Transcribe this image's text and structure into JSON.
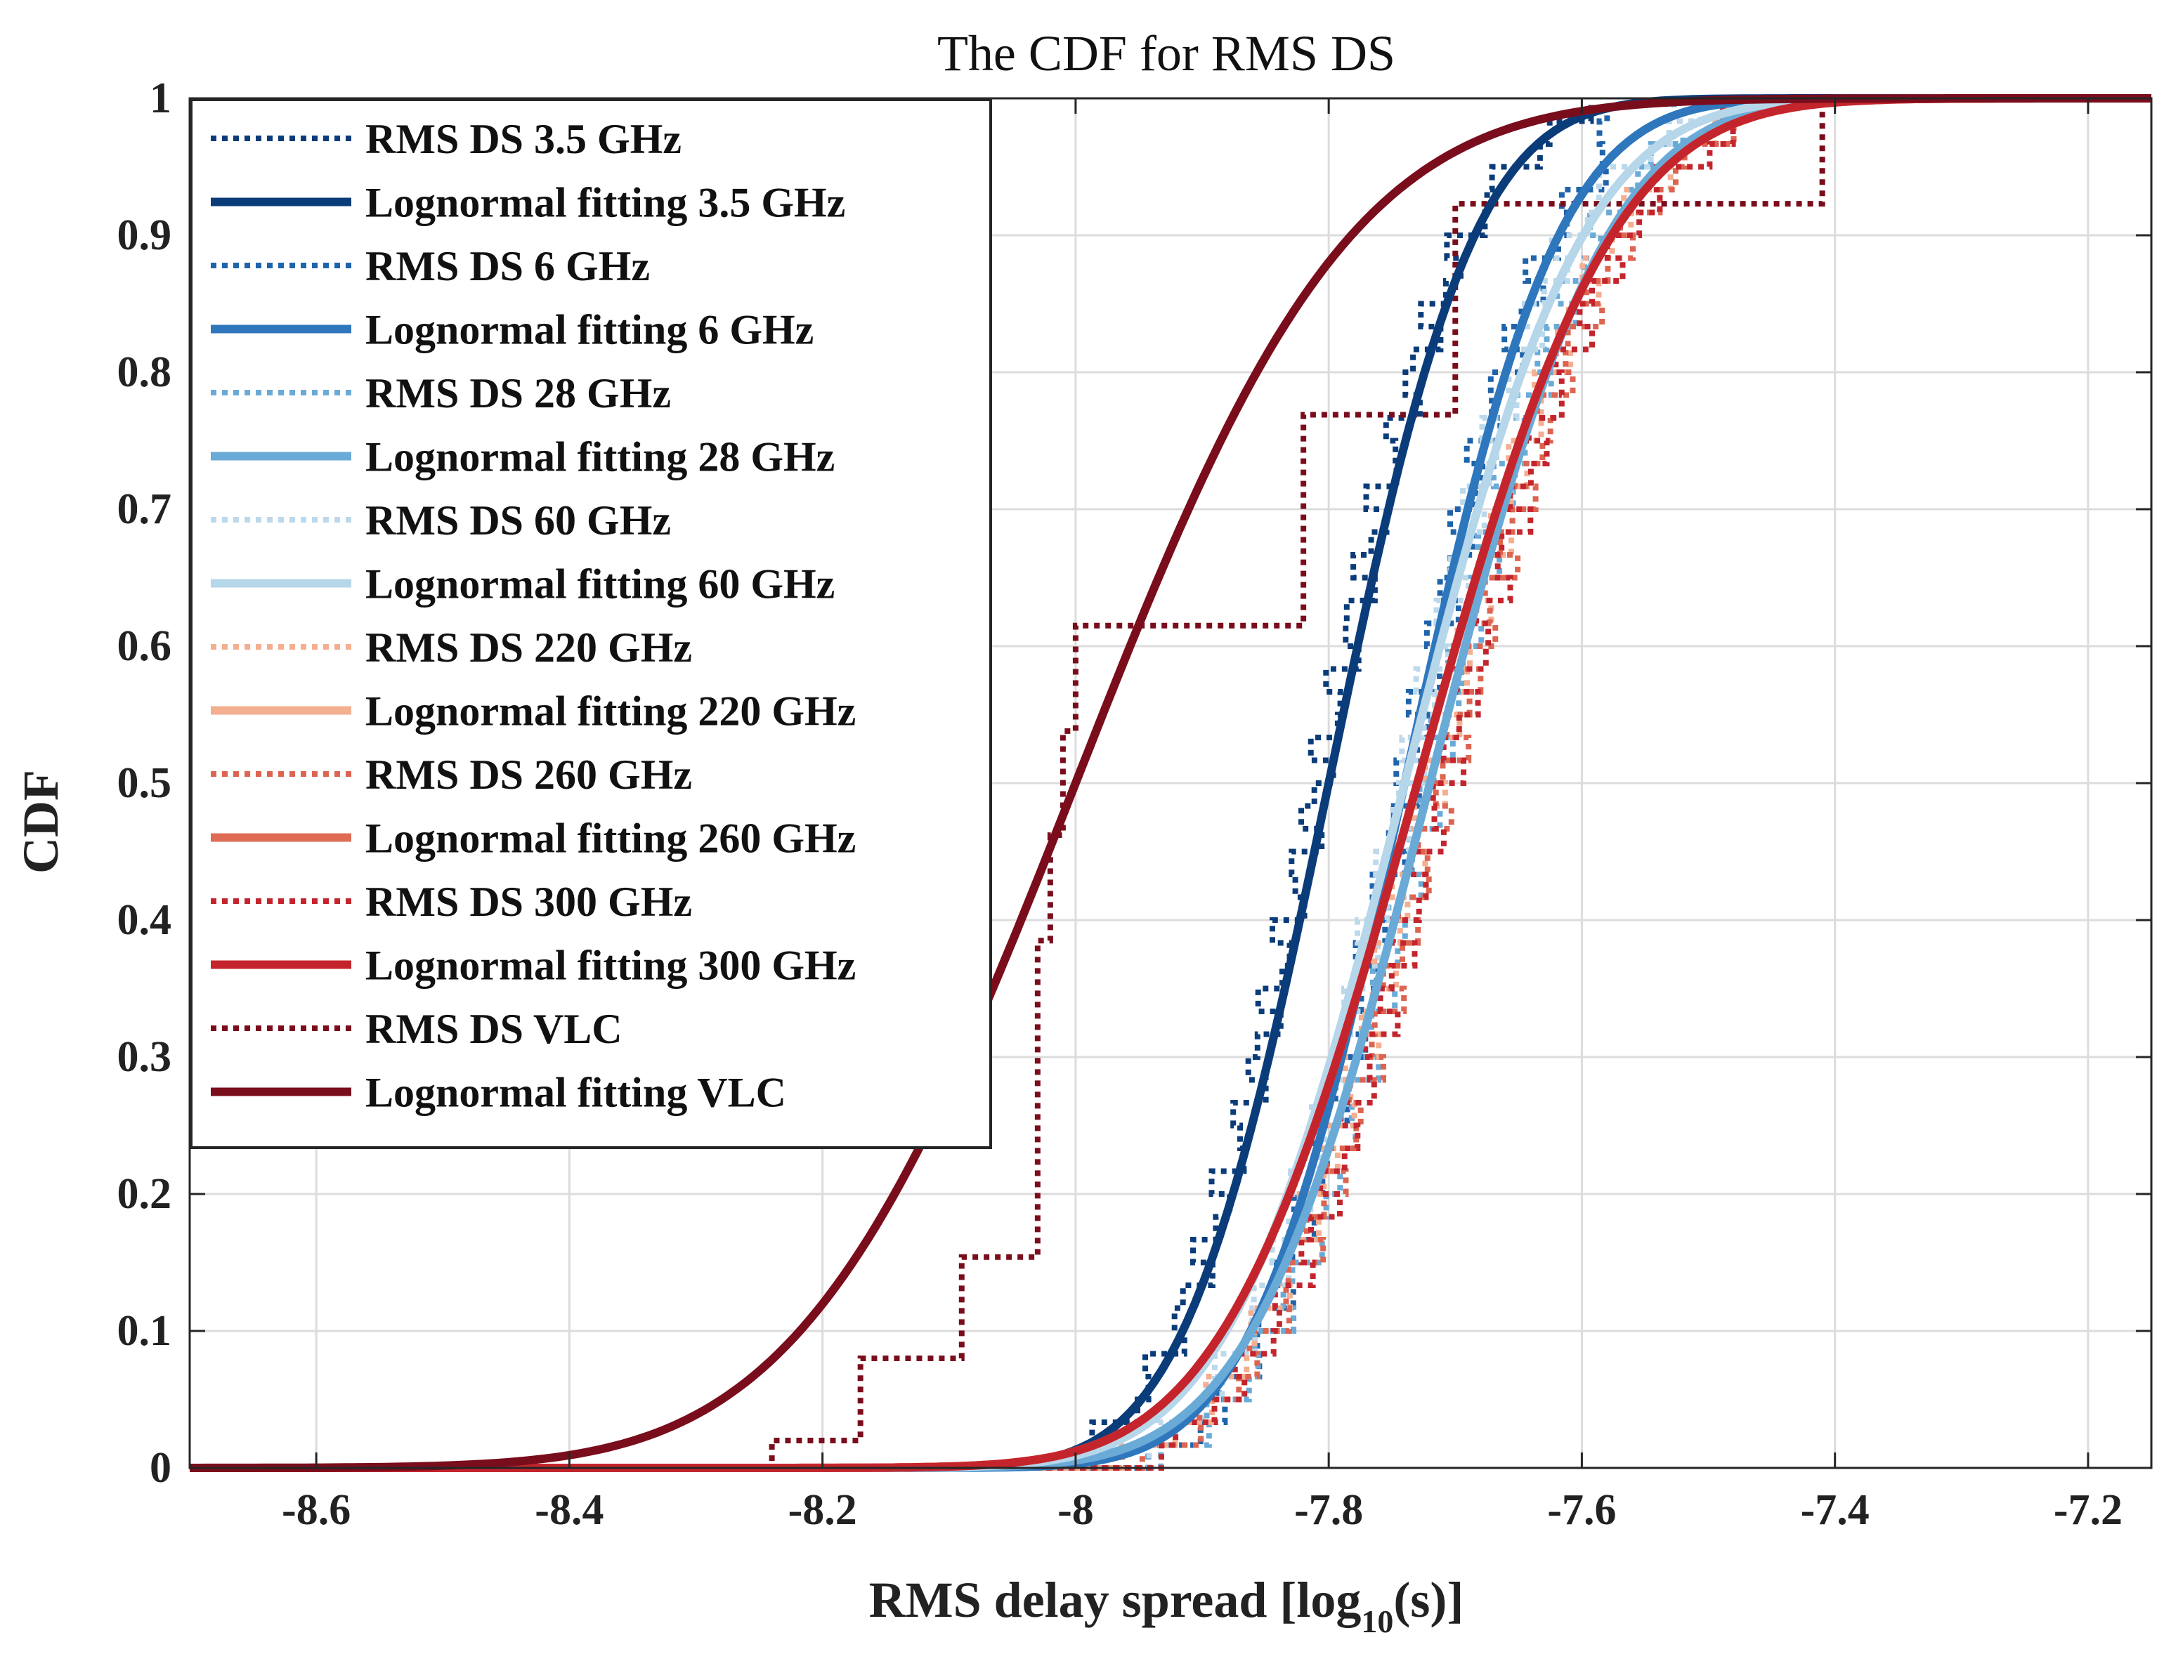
{
  "chart_data": {
    "type": "line",
    "title": "The CDF for RMS DS",
    "xlabel": "RMS delay spread [log10(s)]",
    "xlabel_main": "RMS delay spread [log",
    "xlabel_sub": "10",
    "xlabel_end": "(s)]",
    "ylabel": "CDF",
    "xlim": [
      -8.7,
      -7.15
    ],
    "ylim": [
      0,
      1
    ],
    "grid": true,
    "legend_position": "top-left",
    "x_ticks": [
      -8.6,
      -8.4,
      -8.2,
      -8.0,
      -7.8,
      -7.6,
      -7.4,
      -7.2
    ],
    "x_tick_labels": [
      "-8.6",
      "-8.4",
      "-8.2",
      "-8",
      "-7.8",
      "-7.6",
      "-7.4",
      "-7.2"
    ],
    "y_ticks": [
      0,
      0.1,
      0.2,
      0.3,
      0.4,
      0.5,
      0.6,
      0.7,
      0.8,
      0.9,
      1
    ],
    "y_tick_labels": [
      "0",
      "0.1",
      "0.2",
      "0.3",
      "0.4",
      "0.5",
      "0.6",
      "0.7",
      "0.8",
      "0.9",
      "1"
    ],
    "series": [
      {
        "name": "RMS DS 3.5 GHz",
        "kind": "empirical",
        "color": "#0b3c7a",
        "mu": -7.81,
        "sigma": 0.09,
        "x_min": -8.05,
        "x_max": -7.59
      },
      {
        "name": "Lognormal fitting 3.5 GHz",
        "kind": "lognormal",
        "color": "#0b3c7a",
        "mu": -7.8,
        "sigma": 0.09
      },
      {
        "name": "RMS DS 6 GHz",
        "kind": "empirical",
        "color": "#1f64ab",
        "mu": -7.74,
        "sigma": 0.09,
        "x_min": -8.0,
        "x_max": -7.58
      },
      {
        "name": "Lognormal fitting 6 GHz",
        "kind": "lognormal",
        "color": "#2f77bd",
        "mu": -7.74,
        "sigma": 0.095
      },
      {
        "name": "RMS DS 28 GHz",
        "kind": "empirical",
        "color": "#6aaad7",
        "mu": -7.72,
        "sigma": 0.1,
        "x_min": -8.2,
        "x_max": -7.52
      },
      {
        "name": "Lognormal fitting 28 GHz",
        "kind": "lognormal",
        "color": "#6aaad7",
        "mu": -7.72,
        "sigma": 0.11
      },
      {
        "name": "RMS DS 60 GHz",
        "kind": "empirical",
        "color": "#bcd9ec",
        "mu": -7.74,
        "sigma": 0.1,
        "x_min": -8.05,
        "x_max": -7.5
      },
      {
        "name": "Lognormal fitting 60 GHz",
        "kind": "lognormal",
        "color": "#b6d6ea",
        "mu": -7.74,
        "sigma": 0.11
      },
      {
        "name": "RMS DS 220 GHz",
        "kind": "empirical",
        "color": "#f4ae90",
        "mu": -7.72,
        "sigma": 0.11,
        "x_min": -8.2,
        "x_max": -7.48
      },
      {
        "name": "Lognormal fitting 220 GHz",
        "kind": "lognormal",
        "color": "#f4ae90",
        "mu": -7.73,
        "sigma": 0.12
      },
      {
        "name": "RMS DS 260 GHz",
        "kind": "empirical",
        "color": "#dd6450",
        "mu": -7.71,
        "sigma": 0.11,
        "x_min": -8.2,
        "x_max": -7.48
      },
      {
        "name": "Lognormal fitting 260 GHz",
        "kind": "lognormal",
        "color": "#df6b54",
        "mu": -7.73,
        "sigma": 0.12
      },
      {
        "name": "RMS DS 300 GHz",
        "kind": "empirical",
        "color": "#c4252d",
        "mu": -7.71,
        "sigma": 0.11,
        "x_min": -8.05,
        "x_max": -7.48
      },
      {
        "name": "Lognormal fitting 300 GHz",
        "kind": "lognormal",
        "color": "#c4252d",
        "mu": -7.73,
        "sigma": 0.12
      },
      {
        "name": "RMS DS VLC",
        "kind": "steps",
        "color": "#7a0d1c",
        "x": [
          -8.35,
          -8.24,
          -8.17,
          -8.09,
          -8.03,
          -8.02,
          -8.01,
          -8.0,
          -7.82,
          -7.7,
          -7.41
        ],
        "y": [
          0.0,
          0.02,
          0.08,
          0.154,
          0.385,
          0.462,
          0.538,
          0.615,
          0.769,
          0.923,
          1.0
        ]
      },
      {
        "name": "Lognormal fitting VLC",
        "kind": "lognormal",
        "color": "#7a0d1c",
        "mu": -8.0,
        "sigma": 0.17
      }
    ]
  }
}
